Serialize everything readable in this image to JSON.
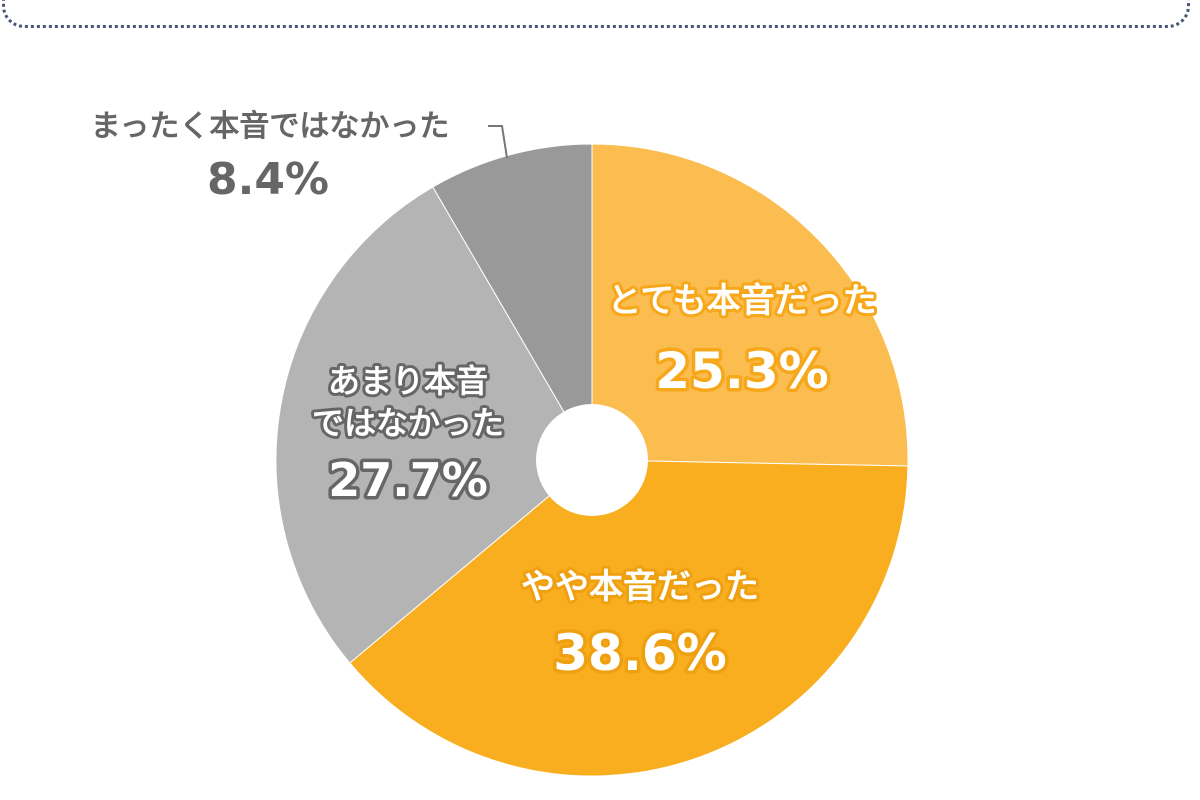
{
  "chart_data": {
    "type": "pie",
    "donut": true,
    "start": "12 o'clock",
    "direction": "clockwise",
    "categories": [
      "とても本音だった",
      "やや本音だった",
      "あまり本音ではなかった",
      "まったく本音ではなかった"
    ],
    "values": [
      25.3,
      38.6,
      27.7,
      8.4
    ],
    "value_labels": [
      "25.3%",
      "38.6%",
      "27.7%",
      "8.4%"
    ],
    "colors": [
      "#FBBD4F",
      "#F8AE1F",
      "#B4B4B4",
      "#999999"
    ],
    "label_lines": [
      [
        "とても本音だった"
      ],
      [
        "やや本音だった"
      ],
      [
        "あまり本音",
        "ではなかった"
      ],
      [
        "まったく本音ではなかった"
      ]
    ]
  }
}
